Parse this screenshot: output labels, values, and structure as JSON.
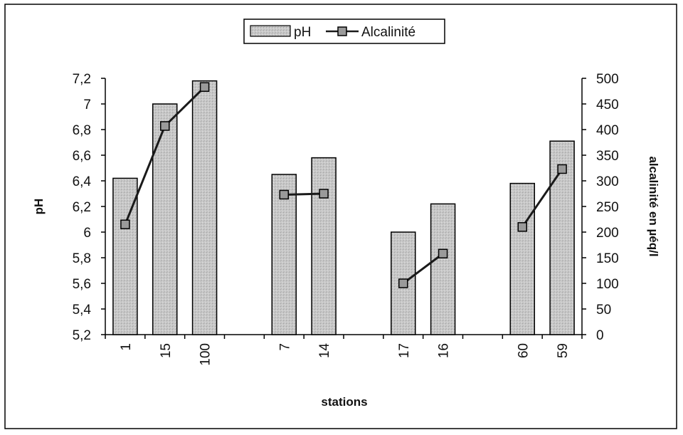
{
  "chart_data": {
    "type": "bar",
    "categories": [
      "1",
      "15",
      "100",
      "",
      "7",
      "14",
      "",
      "17",
      "16",
      "",
      "60",
      "59"
    ],
    "series": [
      {
        "name": "pH",
        "type": "bar",
        "axis": "left",
        "values": [
          6.42,
          7.0,
          7.18,
          null,
          6.45,
          6.58,
          null,
          6.0,
          6.22,
          null,
          6.38,
          6.71
        ]
      },
      {
        "name": "Alcalinité",
        "type": "line",
        "axis": "right",
        "values": [
          215,
          407,
          483,
          null,
          273,
          275,
          null,
          100,
          158,
          null,
          210,
          323
        ],
        "segments": [
          [
            0,
            2
          ],
          [
            4,
            5
          ],
          [
            7,
            8
          ],
          [
            10,
            11
          ]
        ]
      }
    ],
    "title": "",
    "xlabel": "stations",
    "ylabel": "pH",
    "ylabel_right": "alcalinité en µéq/l",
    "ylim": [
      5.2,
      7.2
    ],
    "ylim_right": [
      0,
      500
    ],
    "yticks": [
      "7,2",
      "7",
      "6,8",
      "6,6",
      "6,4",
      "6,2",
      "6",
      "5,8",
      "5,6",
      "5,4",
      "5,2"
    ],
    "yticks_right": [
      "500",
      "450",
      "400",
      "350",
      "300",
      "250",
      "200",
      "150",
      "100",
      "50",
      "0"
    ],
    "grid": false,
    "legend": "top-center",
    "colors": {
      "bar_fill": "#c9c9c9",
      "bar_fill_dark": "#a9a9a9",
      "bar_stroke": "#000000",
      "line": "#1a1a1a",
      "marker_fill": "#9a9a9a",
      "frame": "#000000"
    }
  }
}
